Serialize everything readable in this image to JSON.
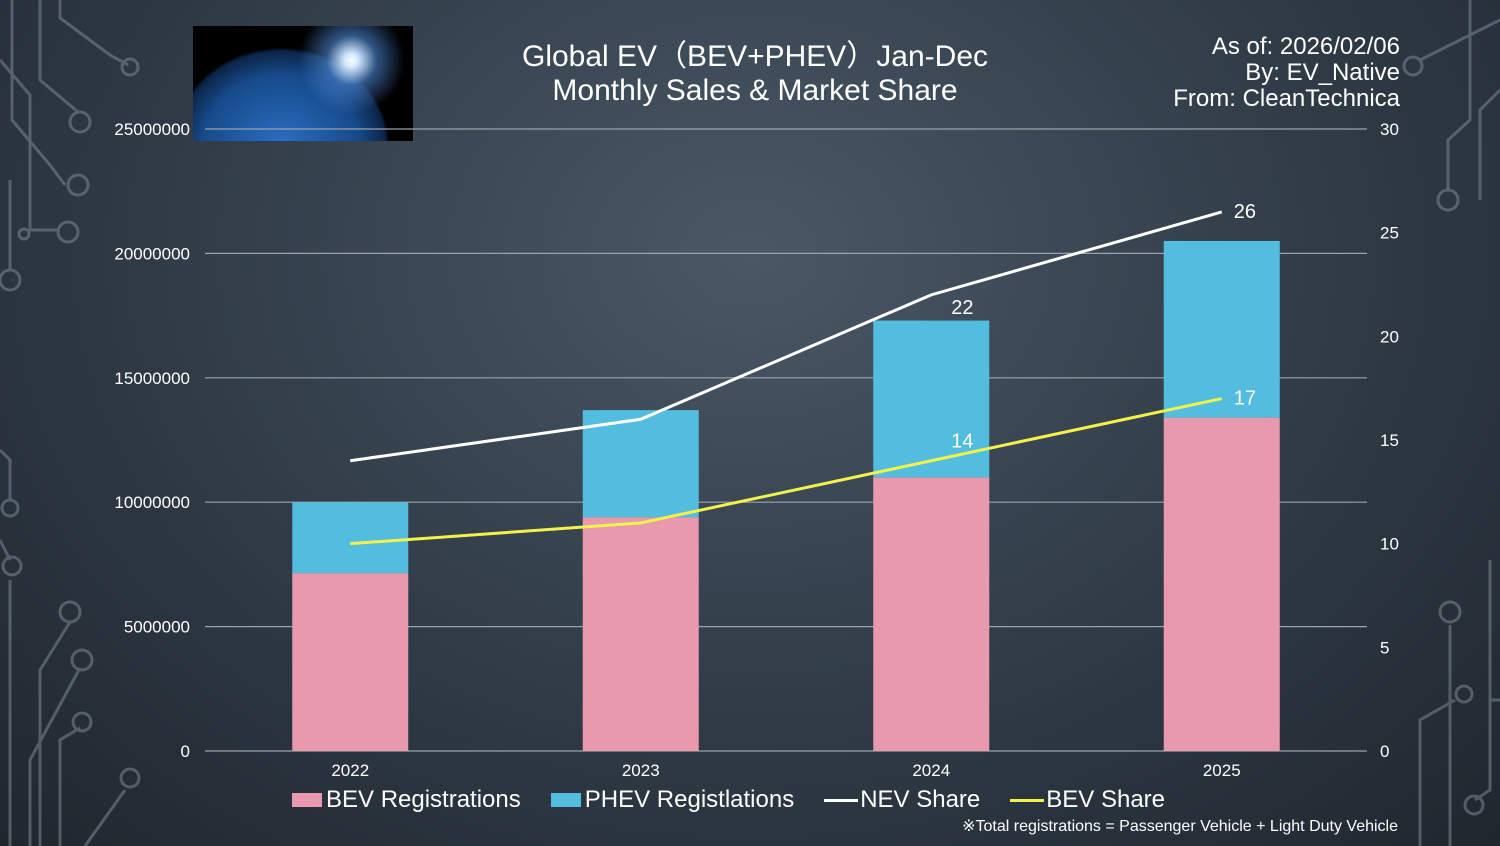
{
  "header": {
    "title_line1": "Global EV（BEV+PHEV）Jan-Dec",
    "title_line2": "Monthly Sales & Market Share",
    "as_of": "As of: 2026/02/06",
    "by": "By: EV_Native",
    "from": "From: CleanTechnica"
  },
  "footnote": "※Total registrations = Passenger Vehicle + Light Duty Vehicle",
  "colors": {
    "bev": "#e899ad",
    "phev": "#53bde0",
    "nev_line": "#ffffff",
    "bev_line": "#f2f24a",
    "grid": "#9aa3ab"
  },
  "chart_data": {
    "type": "bar",
    "stacked": true,
    "categories": [
      "2022",
      "2023",
      "2024",
      "2025"
    ],
    "series": [
      {
        "name": "BEV Registrations",
        "kind": "bar",
        "axis": "left",
        "values": [
          7150000,
          9400000,
          11000000,
          13400000
        ]
      },
      {
        "name": "PHEV Registlations",
        "kind": "bar",
        "axis": "left",
        "values": [
          2850000,
          4300000,
          6300000,
          7100000
        ]
      },
      {
        "name": "NEV Share",
        "kind": "line",
        "axis": "right",
        "values": [
          14,
          16,
          22,
          26
        ]
      },
      {
        "name": "BEV Share",
        "kind": "line",
        "axis": "right",
        "values": [
          10,
          11,
          14,
          17
        ]
      }
    ],
    "data_labels": {
      "NEV Share": [
        "",
        "",
        "22",
        "26"
      ],
      "BEV Share": [
        "",
        "",
        "14",
        "17"
      ]
    },
    "y_left": {
      "min": 0,
      "max": 25000000,
      "ticks": [
        "0",
        "5000000",
        "10000000",
        "15000000",
        "20000000",
        "25000000"
      ]
    },
    "y_right": {
      "min": 0,
      "max": 30,
      "ticks": [
        "0",
        "5",
        "10",
        "15",
        "20",
        "25",
        "30"
      ]
    },
    "grid": true,
    "legend_position": "bottom"
  }
}
